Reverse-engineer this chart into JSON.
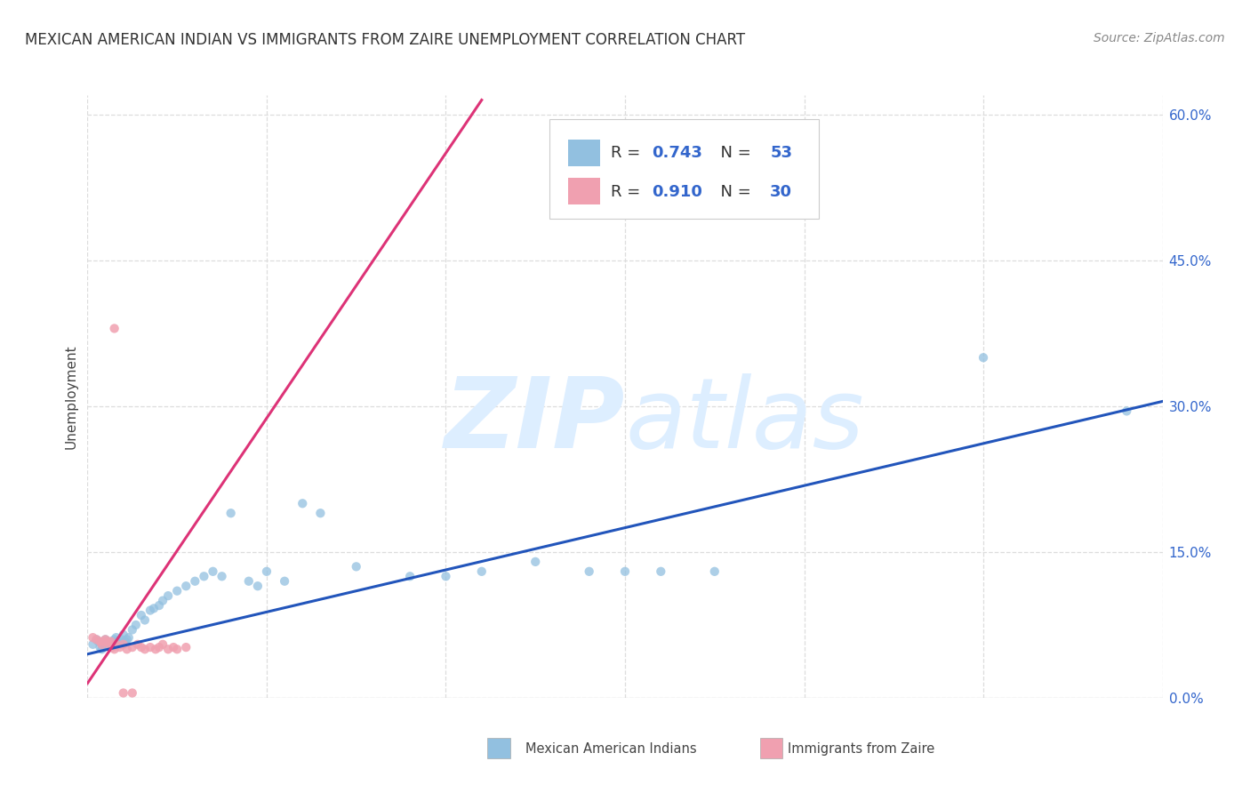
{
  "title": "MEXICAN AMERICAN INDIAN VS IMMIGRANTS FROM ZAIRE UNEMPLOYMENT CORRELATION CHART",
  "source": "Source: ZipAtlas.com",
  "ylabel": "Unemployment",
  "ytick_values": [
    0.0,
    0.15,
    0.3,
    0.45,
    0.6
  ],
  "ytick_labels": [
    "0.0%",
    "15.0%",
    "30.0%",
    "45.0%",
    "60.0%"
  ],
  "xlim": [
    0.0,
    0.6
  ],
  "ylim": [
    0.0,
    0.62
  ],
  "color_blue": "#92c0e0",
  "color_pink": "#f0a0b0",
  "color_line_blue": "#2255bb",
  "color_line_pink": "#dd3377",
  "color_tick": "#3366cc",
  "watermark_zip": "ZIP",
  "watermark_atlas": "atlas",
  "watermark_color": "#ddeeff",
  "background_color": "#ffffff",
  "grid_color": "#dddddd",
  "legend_r1": "R = 0.743",
  "legend_n1": "N = 53",
  "legend_r2": "R = 0.910",
  "legend_n2": "N = 30",
  "blue_scatter_x": [
    0.003,
    0.005,
    0.006,
    0.007,
    0.008,
    0.009,
    0.01,
    0.011,
    0.012,
    0.013,
    0.014,
    0.015,
    0.016,
    0.017,
    0.018,
    0.019,
    0.02,
    0.021,
    0.022,
    0.023,
    0.025,
    0.027,
    0.03,
    0.032,
    0.035,
    0.037,
    0.04,
    0.042,
    0.045,
    0.05,
    0.055,
    0.06,
    0.065,
    0.07,
    0.075,
    0.08,
    0.09,
    0.095,
    0.1,
    0.11,
    0.12,
    0.13,
    0.15,
    0.18,
    0.2,
    0.22,
    0.25,
    0.28,
    0.3,
    0.32,
    0.35,
    0.5,
    0.58
  ],
  "blue_scatter_y": [
    0.055,
    0.06,
    0.058,
    0.052,
    0.05,
    0.055,
    0.06,
    0.058,
    0.055,
    0.052,
    0.058,
    0.06,
    0.062,
    0.058,
    0.055,
    0.06,
    0.065,
    0.058,
    0.06,
    0.062,
    0.07,
    0.075,
    0.085,
    0.08,
    0.09,
    0.092,
    0.095,
    0.1,
    0.105,
    0.11,
    0.115,
    0.12,
    0.125,
    0.13,
    0.125,
    0.19,
    0.12,
    0.115,
    0.13,
    0.12,
    0.2,
    0.19,
    0.135,
    0.125,
    0.125,
    0.13,
    0.14,
    0.13,
    0.13,
    0.13,
    0.13,
    0.35,
    0.295
  ],
  "pink_scatter_x": [
    0.003,
    0.005,
    0.007,
    0.008,
    0.009,
    0.01,
    0.011,
    0.012,
    0.013,
    0.014,
    0.015,
    0.016,
    0.018,
    0.02,
    0.022,
    0.025,
    0.028,
    0.03,
    0.032,
    0.035,
    0.038,
    0.04,
    0.042,
    0.045,
    0.048,
    0.05,
    0.055,
    0.015,
    0.02,
    0.025
  ],
  "pink_scatter_y": [
    0.062,
    0.06,
    0.058,
    0.055,
    0.058,
    0.06,
    0.058,
    0.055,
    0.058,
    0.052,
    0.05,
    0.055,
    0.052,
    0.055,
    0.05,
    0.052,
    0.055,
    0.052,
    0.05,
    0.052,
    0.05,
    0.052,
    0.055,
    0.05,
    0.052,
    0.05,
    0.052,
    0.38,
    0.005,
    0.005
  ],
  "blue_line_x": [
    0.0,
    0.6
  ],
  "blue_line_y": [
    0.045,
    0.305
  ],
  "pink_line_x": [
    0.0,
    0.22
  ],
  "pink_line_y": [
    0.015,
    0.615
  ],
  "title_fontsize": 12,
  "source_fontsize": 10,
  "axis_label_fontsize": 11,
  "tick_fontsize": 11,
  "legend_fontsize": 13,
  "scatter_size": 55
}
